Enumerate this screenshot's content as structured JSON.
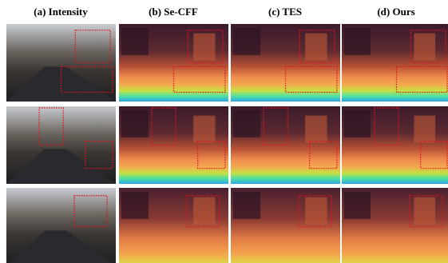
{
  "columns": [
    "(a) Intensity",
    "(b) Se-CFF",
    "(c) TES",
    "(d) Ours"
  ]
}
